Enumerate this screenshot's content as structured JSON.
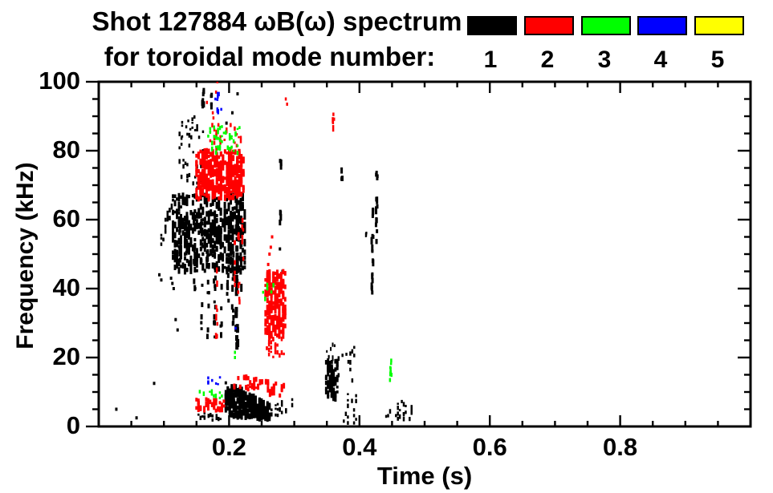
{
  "title": {
    "line1": "Shot 127884 ωB(ω) spectrum",
    "line2": "for toroidal mode number:"
  },
  "legend": {
    "entries": [
      {
        "label": "1",
        "color": "#000000"
      },
      {
        "label": "2",
        "color": "#ff0000"
      },
      {
        "label": "3",
        "color": "#00ff00"
      },
      {
        "label": "4",
        "color": "#0000ff"
      },
      {
        "label": "5",
        "color": "#ffff00"
      }
    ]
  },
  "axes": {
    "x": {
      "label": "Time (s)",
      "min": 0.0,
      "max": 1.0,
      "major": [
        0.2,
        0.4,
        0.6,
        0.8
      ],
      "major_labels": [
        "0.2",
        "0.4",
        "0.6",
        "0.8"
      ],
      "minor_step": 0.05
    },
    "y": {
      "label": "Frequency (kHz)",
      "min": 0,
      "max": 100,
      "major": [
        0,
        20,
        40,
        60,
        80,
        100
      ],
      "major_labels": [
        "0",
        "20",
        "40",
        "60",
        "80",
        "100"
      ],
      "minor_step": 5
    }
  },
  "chart_data": {
    "type": "scatter",
    "title": "Shot 127884 ωB(ω) spectrum for toroidal mode number: 1 2 3 4 5",
    "xlabel": "Time (s)",
    "ylabel": "Frequency (kHz)",
    "xlim": [
      0.0,
      1.0
    ],
    "ylim": [
      0,
      100
    ],
    "grid": false,
    "legend_position": "top-right",
    "modes": [
      {
        "name": "1",
        "color": "#000000"
      },
      {
        "name": "2",
        "color": "#ff0000"
      },
      {
        "name": "3",
        "color": "#00ff00"
      },
      {
        "name": "4",
        "color": "#0000ff"
      },
      {
        "name": "5",
        "color": "#ffff00"
      }
    ],
    "clusters": [
      {
        "mode": 1,
        "kind": "points",
        "pts": [
          [
            0.027,
            5
          ],
          [
            0.058,
            2.5
          ],
          [
            0.085,
            12.5
          ],
          [
            0.093,
            44
          ],
          [
            0.096,
            42.5
          ],
          [
            0.111,
            43
          ],
          [
            0.113,
            41.5
          ],
          [
            0.115,
            40
          ],
          [
            0.118,
            31
          ],
          [
            0.121,
            28
          ]
        ],
        "size": [
          3,
          4
        ]
      },
      {
        "mode": 1,
        "kind": "blob",
        "t": [
          0.096,
          0.112
        ],
        "f0": [
          52,
          56
        ],
        "f1": [
          62,
          66
        ],
        "n": 26,
        "size": [
          2.5,
          4
        ]
      },
      {
        "mode": 1,
        "kind": "blob",
        "t": [
          0.114,
          0.224
        ],
        "f0": [
          45,
          67
        ],
        "n": 520,
        "size": [
          3,
          6
        ]
      },
      {
        "mode": 1,
        "kind": "vline",
        "t": 0.125,
        "f": [
          46,
          60
        ],
        "n": 10,
        "size": [
          3,
          5
        ]
      },
      {
        "mode": 1,
        "kind": "vline",
        "t": 0.135,
        "f": [
          45,
          62
        ],
        "n": 12,
        "size": [
          3,
          5
        ]
      },
      {
        "mode": 1,
        "kind": "vline",
        "t": 0.147,
        "f": [
          32,
          64
        ],
        "n": 12,
        "size": [
          3,
          5
        ]
      },
      {
        "mode": 1,
        "kind": "vline",
        "t": 0.158,
        "f": [
          27,
          64
        ],
        "n": 14,
        "size": [
          3,
          5
        ]
      },
      {
        "mode": 1,
        "kind": "vline",
        "t": 0.168,
        "f": [
          25,
          63
        ],
        "n": 14,
        "size": [
          3,
          5
        ]
      },
      {
        "mode": 1,
        "kind": "vline",
        "t": 0.178,
        "f": [
          24,
          60
        ],
        "n": 14,
        "size": [
          3,
          5
        ]
      },
      {
        "mode": 1,
        "kind": "vline",
        "t": 0.188,
        "f": [
          26,
          58
        ],
        "n": 12,
        "size": [
          3,
          5
        ]
      },
      {
        "mode": 1,
        "kind": "vline",
        "t": 0.198,
        "f": [
          35,
          55
        ],
        "n": 9,
        "size": [
          3,
          5
        ]
      },
      {
        "mode": 1,
        "kind": "vline",
        "t": 0.206,
        "f": [
          28,
          52
        ],
        "n": 10,
        "size": [
          3,
          6
        ]
      },
      {
        "mode": 1,
        "kind": "vline",
        "t": 0.212,
        "f": [
          23,
          67
        ],
        "n": 24,
        "size": [
          4,
          7
        ]
      },
      {
        "mode": 1,
        "kind": "vline",
        "t": 0.218,
        "f": [
          40,
          66
        ],
        "n": 10,
        "size": [
          3,
          6
        ]
      },
      {
        "mode": 1,
        "kind": "vline",
        "t": 0.16,
        "f": [
          92,
          100
        ],
        "n": 8,
        "size": [
          3,
          5
        ]
      },
      {
        "mode": 1,
        "kind": "vline",
        "t": 0.173,
        "f": [
          92,
          97
        ],
        "n": 4,
        "size": [
          3,
          5
        ]
      },
      {
        "mode": 1,
        "kind": "blob",
        "t": [
          0.128,
          0.15
        ],
        "f0": [
          84,
          90
        ],
        "n": 10,
        "size": [
          2.5,
          4
        ]
      },
      {
        "mode": 1,
        "kind": "blob",
        "t": [
          0.124,
          0.16
        ],
        "f0": [
          68,
          88
        ],
        "n": 32,
        "size": [
          2.5,
          4
        ]
      },
      {
        "mode": 1,
        "kind": "points",
        "pts": [
          [
            0.213,
            96.5
          ],
          [
            0.205,
            91
          ],
          [
            0.196,
            88
          ]
        ],
        "size": [
          3,
          4
        ]
      },
      {
        "mode": 1,
        "kind": "vline",
        "t": 0.279,
        "f": [
          74,
          78
        ],
        "n": 4,
        "size": [
          3,
          5
        ]
      },
      {
        "mode": 1,
        "kind": "vline",
        "t": 0.279,
        "f": [
          59,
          63
        ],
        "n": 4,
        "size": [
          3,
          5
        ]
      },
      {
        "mode": 1,
        "kind": "points",
        "pts": [
          [
            0.278,
            51.5
          ],
          [
            0.282,
            45
          ]
        ],
        "size": [
          3,
          4
        ]
      },
      {
        "mode": 1,
        "kind": "vline",
        "t": 0.373,
        "f": [
          71,
          74.5
        ],
        "n": 4,
        "size": [
          3,
          5
        ]
      },
      {
        "mode": 1,
        "kind": "vline",
        "t": 0.41,
        "f": [
          55,
          58
        ],
        "n": 3,
        "size": [
          2,
          4
        ]
      },
      {
        "mode": 1,
        "kind": "vline",
        "t": 0.42,
        "f": [
          31,
          67
        ],
        "n": 17,
        "size": [
          3,
          6
        ]
      },
      {
        "mode": 1,
        "kind": "vline",
        "t": 0.4265,
        "f": [
          52,
          75
        ],
        "n": 13,
        "size": [
          3,
          6
        ]
      },
      {
        "mode": 1,
        "kind": "blob",
        "t": [
          0.195,
          0.262
        ],
        "f0": [
          3,
          13
        ],
        "f1": [
          2,
          6.5
        ],
        "n": 300,
        "size": [
          3,
          6
        ]
      },
      {
        "mode": 1,
        "kind": "blob",
        "t": [
          0.262,
          0.3
        ],
        "f0": [
          2.5,
          6
        ],
        "f1": [
          2.5,
          8
        ],
        "n": 18,
        "size": [
          2.5,
          4
        ]
      },
      {
        "mode": 1,
        "kind": "blob",
        "t": [
          0.15,
          0.19
        ],
        "f0": [
          1.5,
          4
        ],
        "n": 15,
        "size": [
          2.5,
          4
        ]
      },
      {
        "mode": 1,
        "kind": "blob",
        "t": [
          0.349,
          0.366
        ],
        "f0": [
          7.5,
          19
        ],
        "n": 110,
        "size": [
          3,
          5
        ]
      },
      {
        "mode": 1,
        "kind": "blob",
        "t": [
          0.35,
          0.362
        ],
        "f0": [
          19,
          24
        ],
        "n": 8,
        "size": [
          2,
          4
        ]
      },
      {
        "mode": 1,
        "kind": "blob",
        "t": [
          0.368,
          0.398
        ],
        "f0": [
          13,
          23
        ],
        "n": 12,
        "size": [
          2.5,
          4
        ]
      },
      {
        "mode": 1,
        "kind": "blob",
        "t": [
          0.376,
          0.398
        ],
        "f0": [
          1,
          10.5
        ],
        "n": 14,
        "size": [
          2.5,
          4
        ]
      },
      {
        "mode": 1,
        "kind": "blob",
        "t": [
          0.438,
          0.483
        ],
        "f0": [
          2,
          7.5
        ],
        "n": 22,
        "size": [
          2.5,
          4
        ]
      },
      {
        "mode": 2,
        "kind": "blob",
        "t": [
          0.15,
          0.222
        ],
        "f0": [
          66,
          80
        ],
        "n": 380,
        "size": [
          3,
          6
        ]
      },
      {
        "mode": 2,
        "kind": "blob",
        "t": [
          0.168,
          0.218
        ],
        "f0": [
          80,
          88
        ],
        "n": 30,
        "size": [
          2.5,
          4
        ]
      },
      {
        "mode": 2,
        "kind": "points",
        "pts": [
          [
            0.166,
            94
          ],
          [
            0.175,
            91
          ],
          [
            0.176,
            89.5
          ],
          [
            0.182,
            100
          ],
          [
            0.18,
            97
          ],
          [
            0.287,
            95
          ],
          [
            0.289,
            93.5
          ]
        ],
        "size": [
          2.5,
          4
        ]
      },
      {
        "mode": 2,
        "kind": "vline",
        "t": 0.181,
        "f": [
          24,
          50
        ],
        "n": 8,
        "size": [
          2.5,
          5
        ]
      },
      {
        "mode": 2,
        "kind": "vline",
        "t": 0.208,
        "f": [
          40,
          56
        ],
        "n": 6,
        "size": [
          2.5,
          5
        ]
      },
      {
        "mode": 2,
        "kind": "vline",
        "t": 0.215,
        "f": [
          30,
          60
        ],
        "n": 8,
        "size": [
          2.5,
          5
        ]
      },
      {
        "mode": 2,
        "kind": "vline",
        "t": 0.221,
        "f": [
          45,
          62
        ],
        "n": 6,
        "size": [
          2.5,
          5
        ]
      },
      {
        "mode": 2,
        "kind": "blob",
        "t": [
          0.256,
          0.286
        ],
        "f0": [
          26,
          45
        ],
        "n": 200,
        "size": [
          3,
          6
        ]
      },
      {
        "mode": 2,
        "kind": "blob",
        "t": [
          0.258,
          0.284
        ],
        "f0": [
          20,
          26
        ],
        "n": 24,
        "size": [
          2.5,
          4
        ]
      },
      {
        "mode": 2,
        "kind": "points",
        "pts": [
          [
            0.262,
            50
          ],
          [
            0.264,
            52
          ],
          [
            0.266,
            55
          ],
          [
            0.26,
            47
          ]
        ],
        "size": [
          3,
          4
        ]
      },
      {
        "mode": 2,
        "kind": "blob",
        "t": [
          0.15,
          0.192
        ],
        "f0": [
          4.5,
          8
        ],
        "n": 45,
        "size": [
          3,
          5
        ]
      },
      {
        "mode": 2,
        "kind": "blob",
        "t": [
          0.205,
          0.284
        ],
        "f0": [
          11.5,
          15.5
        ],
        "f1": [
          8.5,
          12
        ],
        "n": 55,
        "size": [
          3,
          5
        ]
      },
      {
        "mode": 2,
        "kind": "vline",
        "t": 0.36,
        "f": [
          86,
          92
        ],
        "n": 5,
        "size": [
          2.5,
          5
        ]
      },
      {
        "mode": 3,
        "kind": "blob",
        "t": [
          0.168,
          0.216
        ],
        "f0": [
          79,
          87
        ],
        "n": 45,
        "size": [
          2.5,
          4
        ]
      },
      {
        "mode": 3,
        "kind": "blob",
        "t": [
          0.249,
          0.268
        ],
        "f0": [
          37,
          41.5
        ],
        "n": 7,
        "size": [
          2.5,
          4
        ]
      },
      {
        "mode": 3,
        "kind": "vline",
        "t": 0.448,
        "f": [
          11.5,
          19.5
        ],
        "n": 9,
        "size": [
          2.5,
          4
        ]
      },
      {
        "mode": 3,
        "kind": "blob",
        "t": [
          0.155,
          0.192
        ],
        "f0": [
          8,
          10.5
        ],
        "n": 10,
        "size": [
          2.5,
          4
        ]
      },
      {
        "mode": 3,
        "kind": "points",
        "pts": [
          [
            0.209,
            20
          ],
          [
            0.209,
            21.5
          ]
        ],
        "size": [
          2.5,
          4
        ]
      },
      {
        "mode": 4,
        "kind": "vline",
        "t": 0.183,
        "f": [
          90,
          100
        ],
        "n": 6,
        "size": [
          2.5,
          4
        ]
      },
      {
        "mode": 4,
        "kind": "points",
        "pts": [
          [
            0.188,
            92
          ],
          [
            0.179,
            95
          ],
          [
            0.21,
            28.5
          ]
        ],
        "size": [
          2.5,
          3.5
        ]
      },
      {
        "mode": 4,
        "kind": "blob",
        "t": [
          0.165,
          0.189
        ],
        "f0": [
          12,
          14.5
        ],
        "n": 7,
        "size": [
          2.5,
          3.5
        ]
      }
    ]
  },
  "plot_geometry_note": "frame left=123 top=102 right=935 bottom=532"
}
